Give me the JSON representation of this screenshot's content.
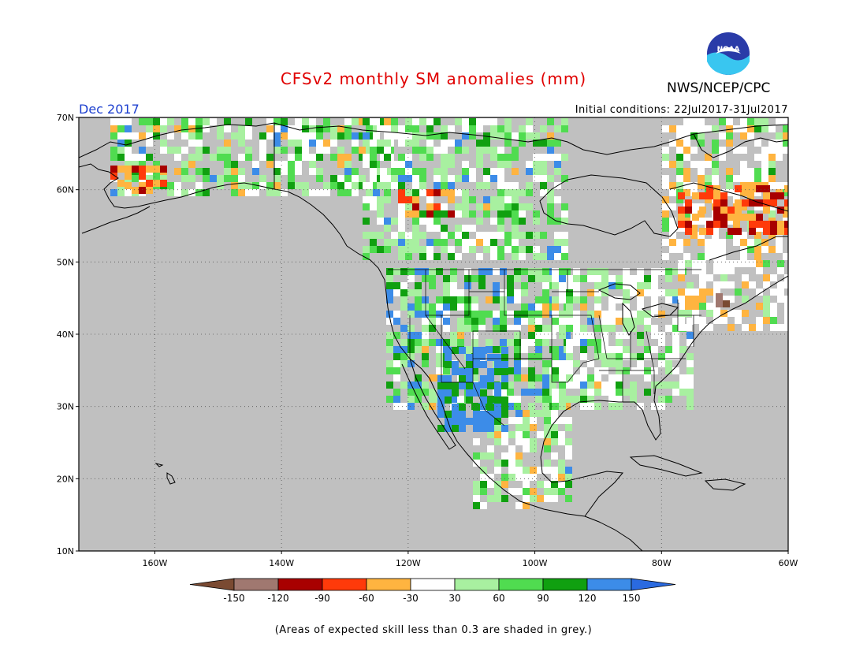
{
  "header": {
    "title": "CFSv2 monthly SM anomalies (mm)",
    "organization": "NWS/NCEP/CPC",
    "logo_text": "NOAA",
    "valid_month": "Dec 2017",
    "initial_conditions": "Initial conditions: 22Jul2017-31Jul2017"
  },
  "map": {
    "lon_range": [
      -172,
      -60
    ],
    "lat_range": [
      10,
      70
    ],
    "lat_labels": [
      "70N",
      "60N",
      "50N",
      "40N",
      "30N",
      "20N",
      "10N"
    ],
    "lon_labels": [
      "160W",
      "140W",
      "120W",
      "100W",
      "80W",
      "60W"
    ],
    "lat_values": [
      70,
      60,
      50,
      40,
      30,
      20,
      10
    ],
    "lon_values": [
      -160,
      -140,
      -120,
      -100,
      -80,
      -60
    ],
    "background_color": "#c0c0c0",
    "grid": true
  },
  "colorbar": {
    "labels": [
      "-150",
      "-120",
      "-90",
      "-60",
      "-30",
      "30",
      "60",
      "90",
      "120",
      "150"
    ],
    "colors": [
      "#7a4a32",
      "#a07870",
      "#a80000",
      "#ff3a0a",
      "#ffb440",
      "#ffffff",
      "#a8f0a0",
      "#50dc50",
      "#10a010",
      "#3c8ce8",
      "#2a6ae0"
    ]
  },
  "footnote": "(Areas of expected skill less than 0.3 are shaded in grey.)"
}
